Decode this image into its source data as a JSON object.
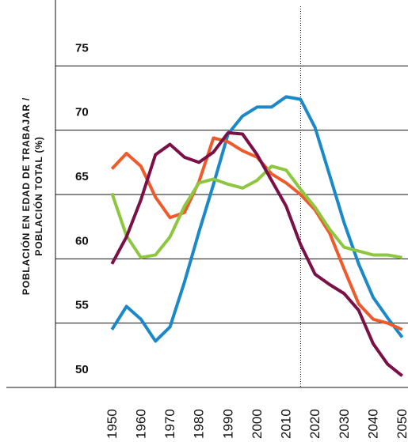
{
  "chart_data": {
    "type": "line",
    "y_label_lines": [
      "POBLACIÓN EN EDAD DE TRABAJAR /",
      "POBLACIÓN TOTAL (%)"
    ],
    "x": [
      1950,
      1955,
      1960,
      1965,
      1970,
      1975,
      1980,
      1985,
      1990,
      1995,
      2000,
      2005,
      2010,
      2015,
      2020,
      2025,
      2030,
      2035,
      2040,
      2045,
      2050
    ],
    "series": [
      {
        "color": "#1a88c9",
        "values": [
          54.5,
          56.3,
          55.3,
          53.6,
          54.7,
          58.2,
          62.1,
          65.8,
          69.7,
          71.1,
          71.8,
          71.8,
          72.6,
          72.4,
          70.2,
          66.5,
          62.8,
          59.6,
          57.0,
          55.4,
          53.9
        ]
      },
      {
        "color": "#ef5a2a",
        "values": [
          67.0,
          68.2,
          67.2,
          64.8,
          63.2,
          63.6,
          66.0,
          69.4,
          69.1,
          68.4,
          67.9,
          66.6,
          65.9,
          65.0,
          63.8,
          62.0,
          59.2,
          56.5,
          55.3,
          55.0,
          54.5
        ]
      },
      {
        "color": "#8dc63f",
        "values": [
          65.1,
          61.8,
          60.1,
          60.3,
          61.7,
          64.1,
          65.9,
          66.2,
          65.8,
          65.5,
          66.1,
          67.2,
          66.9,
          65.4,
          64.0,
          62.3,
          60.9,
          60.6,
          60.3,
          60.3,
          60.1
        ]
      },
      {
        "color": "#7b1046",
        "values": [
          59.6,
          61.7,
          64.6,
          68.1,
          68.9,
          67.9,
          67.5,
          68.3,
          69.8,
          69.7,
          68.1,
          66.1,
          64.1,
          61.1,
          58.8,
          58.0,
          57.3,
          56.0,
          53.4,
          51.8,
          50.9
        ]
      }
    ],
    "xlim": [
      1930,
      2052
    ],
    "xticks": [
      1950,
      1960,
      1970,
      1980,
      1990,
      2000,
      2010,
      2020,
      2030,
      2040,
      2050
    ],
    "ylim": [
      50,
      80
    ],
    "yticks": [
      50,
      55,
      60,
      65,
      70,
      75
    ],
    "reference_x": 2015,
    "grid": true
  }
}
